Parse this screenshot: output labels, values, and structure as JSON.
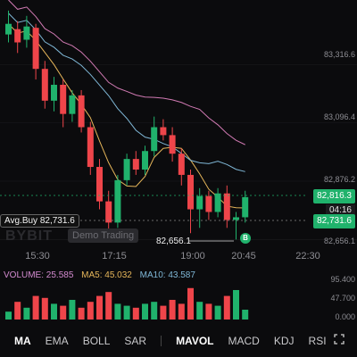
{
  "colors": {
    "up": "#20b26c",
    "down": "#ef454a",
    "ma_yellow": "#e6b65a",
    "ma_blue": "#7fb7d6",
    "ma_pink": "#d17ab3"
  },
  "y_axis": [
    "83,316.6",
    "83,096.4",
    "82,876.2",
    "82,656.1"
  ],
  "x_axis": [
    "15:30",
    "17:15",
    "19:00",
    "20:45",
    "22:30"
  ],
  "last_price": "82,816.3",
  "countdown": "04:16",
  "avg_buy_price": "82,731.6",
  "avg_buy_label": "Avg.Buy 82,731.6",
  "low_label": "82,656.1",
  "buy_badge": "B",
  "watermark": "BYBIT",
  "demo_label": "Demo Trading",
  "volume": {
    "volume": "VOLUME: 25.585",
    "ma5": "MA5: 45.032",
    "ma10": "MA10: 43.587"
  },
  "vol_axis": [
    "95.400",
    "47.700",
    "0.000"
  ],
  "tabs": [
    "MA",
    "EMA",
    "BOLL",
    "SAR",
    "MAVOL",
    "MACD",
    "KDJ",
    "RSI"
  ],
  "chart_data": {
    "type": "candlestick",
    "y_ticks": [
      83316.6,
      83096.4,
      82876.2,
      82656.1
    ],
    "x_ticks": [
      "15:30",
      "17:15",
      "19:00",
      "20:45",
      "22:30"
    ],
    "last_price": 82816.3,
    "avg_buy": 82731.6,
    "low_marker": 82656.1,
    "candles": [
      {
        "o": 83430,
        "c": 83470,
        "h": 83520,
        "l": 83400
      },
      {
        "o": 83450,
        "c": 83400,
        "h": 83480,
        "l": 83360
      },
      {
        "o": 83410,
        "c": 83460,
        "h": 83500,
        "l": 83380
      },
      {
        "o": 83455,
        "c": 83300,
        "h": 83470,
        "l": 83260
      },
      {
        "o": 83300,
        "c": 83180,
        "h": 83330,
        "l": 83150
      },
      {
        "o": 83180,
        "c": 83240,
        "h": 83270,
        "l": 83140
      },
      {
        "o": 83240,
        "c": 83130,
        "h": 83260,
        "l": 83080
      },
      {
        "o": 83130,
        "c": 83200,
        "h": 83220,
        "l": 83100
      },
      {
        "o": 83200,
        "c": 83080,
        "h": 83220,
        "l": 83060
      },
      {
        "o": 83080,
        "c": 82930,
        "h": 83100,
        "l": 82900
      },
      {
        "o": 82930,
        "c": 82800,
        "h": 82960,
        "l": 82770
      },
      {
        "o": 82800,
        "c": 82720,
        "h": 82840,
        "l": 82680
      },
      {
        "o": 82720,
        "c": 82880,
        "h": 82900,
        "l": 82700
      },
      {
        "o": 82880,
        "c": 82960,
        "h": 82980,
        "l": 82860
      },
      {
        "o": 82960,
        "c": 82920,
        "h": 82990,
        "l": 82900
      },
      {
        "o": 82920,
        "c": 82990,
        "h": 83010,
        "l": 82900
      },
      {
        "o": 82990,
        "c": 83080,
        "h": 83120,
        "l": 82970
      },
      {
        "o": 83080,
        "c": 83050,
        "h": 83110,
        "l": 83030
      },
      {
        "o": 83050,
        "c": 82980,
        "h": 83080,
        "l": 82950
      },
      {
        "o": 82980,
        "c": 82900,
        "h": 83000,
        "l": 82860
      },
      {
        "o": 82900,
        "c": 82770,
        "h": 82920,
        "l": 82680
      },
      {
        "o": 82770,
        "c": 82820,
        "h": 82850,
        "l": 82700
      },
      {
        "o": 82820,
        "c": 82760,
        "h": 82840,
        "l": 82730
      },
      {
        "o": 82760,
        "c": 82830,
        "h": 82850,
        "l": 82740
      },
      {
        "o": 82830,
        "c": 82730,
        "h": 82860,
        "l": 82700
      },
      {
        "o": 82730,
        "c": 82740,
        "h": 82760,
        "l": 82656
      },
      {
        "o": 82740,
        "c": 82816,
        "h": 82840,
        "l": 82720
      }
    ],
    "volume_values": [
      20,
      45,
      30,
      60,
      55,
      40,
      35,
      50,
      30,
      45,
      60,
      70,
      40,
      35,
      30,
      40,
      45,
      35,
      50,
      40,
      80,
      45,
      40,
      35,
      60,
      75,
      25
    ]
  }
}
